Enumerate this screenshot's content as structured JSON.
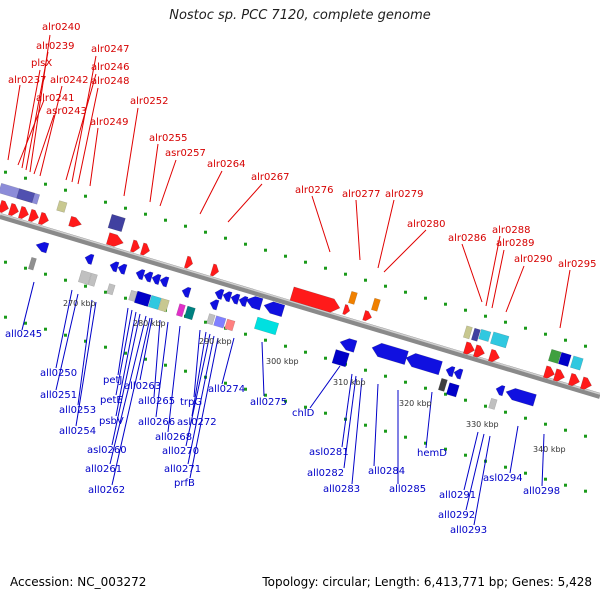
{
  "title": "Nostoc sp. PCC 7120, complete genome",
  "footer": {
    "accession": "Accession: NC_003272",
    "summary": "Topology: circular; Length: 6,413,771 bp; Genes: 5,428"
  },
  "colors": {
    "forward_label": "#d60000",
    "reverse_label": "#0000c8",
    "forward_gene": "#ff0000",
    "reverse_gene": "#0000ee",
    "axis": "#7a7a7a",
    "tick": "#1a9a1a"
  },
  "forward_labels": [
    "alr0240",
    "alr0239",
    "plsX",
    "alr0237",
    "alr0241",
    "asr0243",
    "alr0242",
    "alr0246",
    "alr0247",
    "alr0248",
    "alr0249",
    "alr0252",
    "alr0255",
    "asr0257",
    "alr0264",
    "alr0267",
    "alr0276",
    "alr0277",
    "alr0279",
    "alr0280",
    "alr0286",
    "alr0288",
    "alr0289",
    "alr0290",
    "alr0295"
  ],
  "reverse_labels": [
    "all0245",
    "all0250",
    "all0251",
    "all0253",
    "all0254",
    "petJ",
    "petE",
    "psbV",
    "asl0260",
    "all0261",
    "all0262",
    "all0263",
    "all0265",
    "all0266",
    "all0268",
    "trpG",
    "asl0272",
    "all0270",
    "all0271",
    "prfB",
    "all0274",
    "all0275",
    "chlD",
    "asl0281",
    "all0282",
    "all0283",
    "all0284",
    "all0285",
    "hemD",
    "all0291",
    "all0292",
    "all0293",
    "asl0294",
    "all0298"
  ],
  "scale_labels": [
    "270 kbp",
    "280 kbp",
    "290 kbp",
    "300 kbp",
    "310 kbp",
    "320 kbp",
    "330 kbp",
    "340 kbp"
  ]
}
